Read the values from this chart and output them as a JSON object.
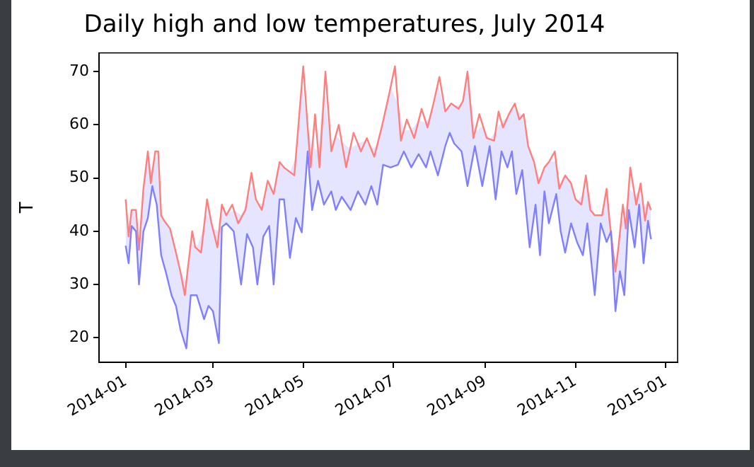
{
  "chart_data": {
    "type": "line",
    "title": "Daily high and low temperatures, July 2014",
    "ylabel": "T",
    "xlim": [
      "2013-12-14",
      "2015-01-09"
    ],
    "xticks": [
      "2014-01",
      "2014-03",
      "2014-05",
      "2014-07",
      "2014-09",
      "2014-11",
      "2015-01"
    ],
    "ylim": [
      15.4,
      73.5
    ],
    "yticks": [
      20,
      30,
      40,
      50,
      60,
      70
    ],
    "grid": false,
    "legend": false,
    "series": [
      {
        "type": "line",
        "color": "#ff7f7f",
        "x": [
          "2014-01-01",
          "2014-01-03",
          "2014-01-05",
          "2014-01-08",
          "2014-01-10",
          "2014-01-13",
          "2014-01-16",
          "2014-01-18",
          "2014-01-21",
          "2014-01-23",
          "2014-01-25",
          "2014-01-27",
          "2014-01-31",
          "2014-02-04",
          "2014-02-07",
          "2014-02-10",
          "2014-02-12",
          "2014-02-15",
          "2014-02-17",
          "2014-02-21",
          "2014-02-25",
          "2014-02-28",
          "2014-03-04",
          "2014-03-07",
          "2014-03-10",
          "2014-03-14",
          "2014-03-18",
          "2014-03-23",
          "2014-03-27",
          "2014-03-30",
          "2014-04-03",
          "2014-04-07",
          "2014-04-11",
          "2014-04-15",
          "2014-04-18",
          "2014-04-25",
          "2014-05-01",
          "2014-05-06",
          "2014-05-09",
          "2014-05-12",
          "2014-05-16",
          "2014-05-20",
          "2014-05-25",
          "2014-05-30",
          "2014-06-04",
          "2014-06-09",
          "2014-06-13",
          "2014-06-18",
          "2014-06-23",
          "2014-06-28",
          "2014-07-02",
          "2014-07-06",
          "2014-07-10",
          "2014-07-15",
          "2014-07-20",
          "2014-07-24",
          "2014-07-28",
          "2014-08-01",
          "2014-08-05",
          "2014-08-09",
          "2014-08-14",
          "2014-08-17",
          "2014-08-20",
          "2014-08-24",
          "2014-08-28",
          "2014-09-02",
          "2014-09-07",
          "2014-09-10",
          "2014-09-13",
          "2014-09-17",
          "2014-09-21",
          "2014-09-24",
          "2014-09-27",
          "2014-09-30",
          "2014-10-04",
          "2014-10-07",
          "2014-10-11",
          "2014-10-14",
          "2014-10-18",
          "2014-10-21",
          "2014-10-25",
          "2014-10-29",
          "2014-11-01",
          "2014-11-05",
          "2014-11-08",
          "2014-11-11",
          "2014-11-14",
          "2014-11-19",
          "2014-11-22",
          "2014-11-24",
          "2014-11-28",
          "2014-11-30",
          "2014-12-03",
          "2014-12-05",
          "2014-12-08",
          "2014-12-12",
          "2014-12-15",
          "2014-12-18",
          "2014-12-20",
          "2014-12-22"
        ],
        "values": [
          46,
          39,
          44,
          44,
          36.5,
          48,
          55,
          49,
          55,
          55,
          43,
          42,
          40.5,
          36,
          32.4,
          28,
          33,
          40,
          37,
          36,
          46,
          41.5,
          37,
          45,
          43,
          45,
          41.5,
          44,
          51,
          46,
          44,
          49.5,
          47,
          53,
          52,
          50.5,
          71,
          52,
          62,
          52,
          70,
          55,
          60,
          52,
          58.5,
          55,
          57.5,
          54,
          59.5,
          65.7,
          71,
          57,
          61,
          57.5,
          63,
          59.5,
          64,
          69,
          62.5,
          64,
          63,
          64.5,
          70,
          57.5,
          62,
          57.5,
          57,
          62.5,
          59.5,
          62,
          64,
          61,
          62,
          56,
          53,
          49,
          52,
          53,
          55,
          48,
          50.5,
          49,
          46,
          45,
          50.5,
          44,
          43,
          43,
          48,
          42,
          32.4,
          37,
          45,
          40.5,
          52,
          45,
          49,
          42,
          45.5,
          44
        ]
      },
      {
        "type": "line",
        "color": "#7f7fff",
        "x": [
          "2014-01-01",
          "2014-01-03",
          "2014-01-05",
          "2014-01-08",
          "2014-01-10",
          "2014-01-13",
          "2014-01-16",
          "2014-01-19",
          "2014-01-22",
          "2014-01-25",
          "2014-01-28",
          "2014-02-01",
          "2014-02-04",
          "2014-02-07",
          "2014-02-11",
          "2014-02-14",
          "2014-02-18",
          "2014-02-23",
          "2014-02-26",
          "2014-03-01",
          "2014-03-05",
          "2014-03-07",
          "2014-03-10",
          "2014-03-15",
          "2014-03-20",
          "2014-03-24",
          "2014-03-28",
          "2014-03-31",
          "2014-04-04",
          "2014-04-08",
          "2014-04-11",
          "2014-04-15",
          "2014-04-18",
          "2014-04-22",
          "2014-04-26",
          "2014-04-30",
          "2014-05-04",
          "2014-05-07",
          "2014-05-11",
          "2014-05-15",
          "2014-05-20",
          "2014-05-23",
          "2014-05-27",
          "2014-06-02",
          "2014-06-07",
          "2014-06-12",
          "2014-06-16",
          "2014-06-20",
          "2014-06-24",
          "2014-06-29",
          "2014-07-04",
          "2014-07-08",
          "2014-07-13",
          "2014-07-18",
          "2014-07-23",
          "2014-07-26",
          "2014-07-31",
          "2014-08-05",
          "2014-08-08",
          "2014-08-11",
          "2014-08-16",
          "2014-08-20",
          "2014-08-25",
          "2014-08-30",
          "2014-09-04",
          "2014-09-08",
          "2014-09-12",
          "2014-09-16",
          "2014-09-19",
          "2014-09-22",
          "2014-09-26",
          "2014-10-01",
          "2014-10-05",
          "2014-10-08",
          "2014-10-11",
          "2014-10-14",
          "2014-10-19",
          "2014-10-22",
          "2014-10-25",
          "2014-10-29",
          "2014-11-02",
          "2014-11-06",
          "2014-11-09",
          "2014-11-14",
          "2014-11-18",
          "2014-11-22",
          "2014-11-25",
          "2014-11-28",
          "2014-12-01",
          "2014-12-04",
          "2014-12-07",
          "2014-12-11",
          "2014-12-14",
          "2014-12-17",
          "2014-12-20",
          "2014-12-22"
        ],
        "values": [
          37.3,
          34,
          41,
          40,
          30,
          40,
          42.5,
          48.5,
          45,
          35.5,
          32.5,
          28,
          26,
          21.6,
          18,
          28,
          28,
          23.5,
          26,
          25,
          19,
          40.8,
          41.5,
          40,
          30,
          39.5,
          37,
          30,
          39,
          41,
          30,
          46,
          46,
          35,
          42.5,
          39.8,
          55,
          44,
          49.5,
          45,
          47.5,
          44,
          46.5,
          44,
          47.5,
          45,
          48.5,
          45,
          52.5,
          52,
          52.5,
          55,
          52,
          54.5,
          52,
          55,
          50.5,
          56,
          58.5,
          56.5,
          55,
          48.5,
          56,
          48.5,
          56,
          46,
          55,
          52,
          55,
          47,
          51.5,
          37,
          45,
          35.5,
          47.5,
          41.5,
          47,
          40,
          36,
          41.5,
          38,
          35.5,
          41.5,
          28,
          41.5,
          38,
          40,
          25,
          32.5,
          28,
          44,
          37,
          45,
          34,
          42,
          38.5
        ],
        "lower": [
          37.3,
          34,
          41,
          40,
          30,
          40,
          42.5,
          48.5,
          45,
          35.5,
          32.5,
          28,
          26,
          21.6,
          18,
          28,
          28,
          23.5,
          26,
          25,
          19,
          40.8,
          41.5,
          40,
          30,
          39.5,
          37,
          30,
          39,
          41,
          30,
          46,
          46,
          35,
          42.5,
          39.8,
          55,
          44,
          49.5,
          45,
          47.5,
          44,
          46.5,
          44,
          47.5,
          45,
          48.5,
          45,
          52.5,
          52,
          52.5,
          55,
          52,
          54.5,
          52,
          55,
          50.5,
          56,
          58.5,
          56.5,
          55,
          48.5,
          56,
          48.5,
          56,
          46,
          55,
          52,
          55,
          47,
          51.5,
          37,
          45,
          35.5,
          47.5,
          41.5,
          47,
          40,
          36,
          41.5,
          38,
          35.5,
          41.5,
          28,
          41.5,
          38,
          40,
          25,
          32.5,
          28,
          44,
          37,
          45,
          34,
          42,
          38.5
        ],
        "upper": [
          46,
          39,
          44,
          44,
          36.5,
          48,
          55,
          51,
          55,
          43,
          41.5,
          40,
          36,
          32.4,
          30.5,
          38,
          36.8,
          41,
          44.5,
          40.5,
          40,
          45,
          43,
          44,
          43,
          45.5,
          49,
          45.5,
          45,
          49,
          47,
          53,
          52,
          51,
          54,
          68,
          59.5,
          56,
          55,
          67,
          55,
          58,
          56.8,
          55.5,
          56.5,
          57,
          55.5,
          56,
          60.7,
          67,
          64,
          59,
          59,
          60.8,
          60.4,
          61.8,
          67.7,
          62.5,
          63.6,
          63.6,
          63.8,
          70,
          58.6,
          59.8,
          57.3,
          58.8,
          60.5,
          61.4,
          63,
          63,
          61.7,
          55.2,
          51.7,
          50,
          52,
          53,
          53.2,
          48.6,
          50.5,
          49,
          45.7,
          46.8,
          48.4,
          43,
          43,
          48,
          39.6,
          32.4,
          41,
          42.8,
          48.2,
          46.8,
          47.7,
          44.3,
          45.5,
          44
        ]
      }
    ]
  }
}
